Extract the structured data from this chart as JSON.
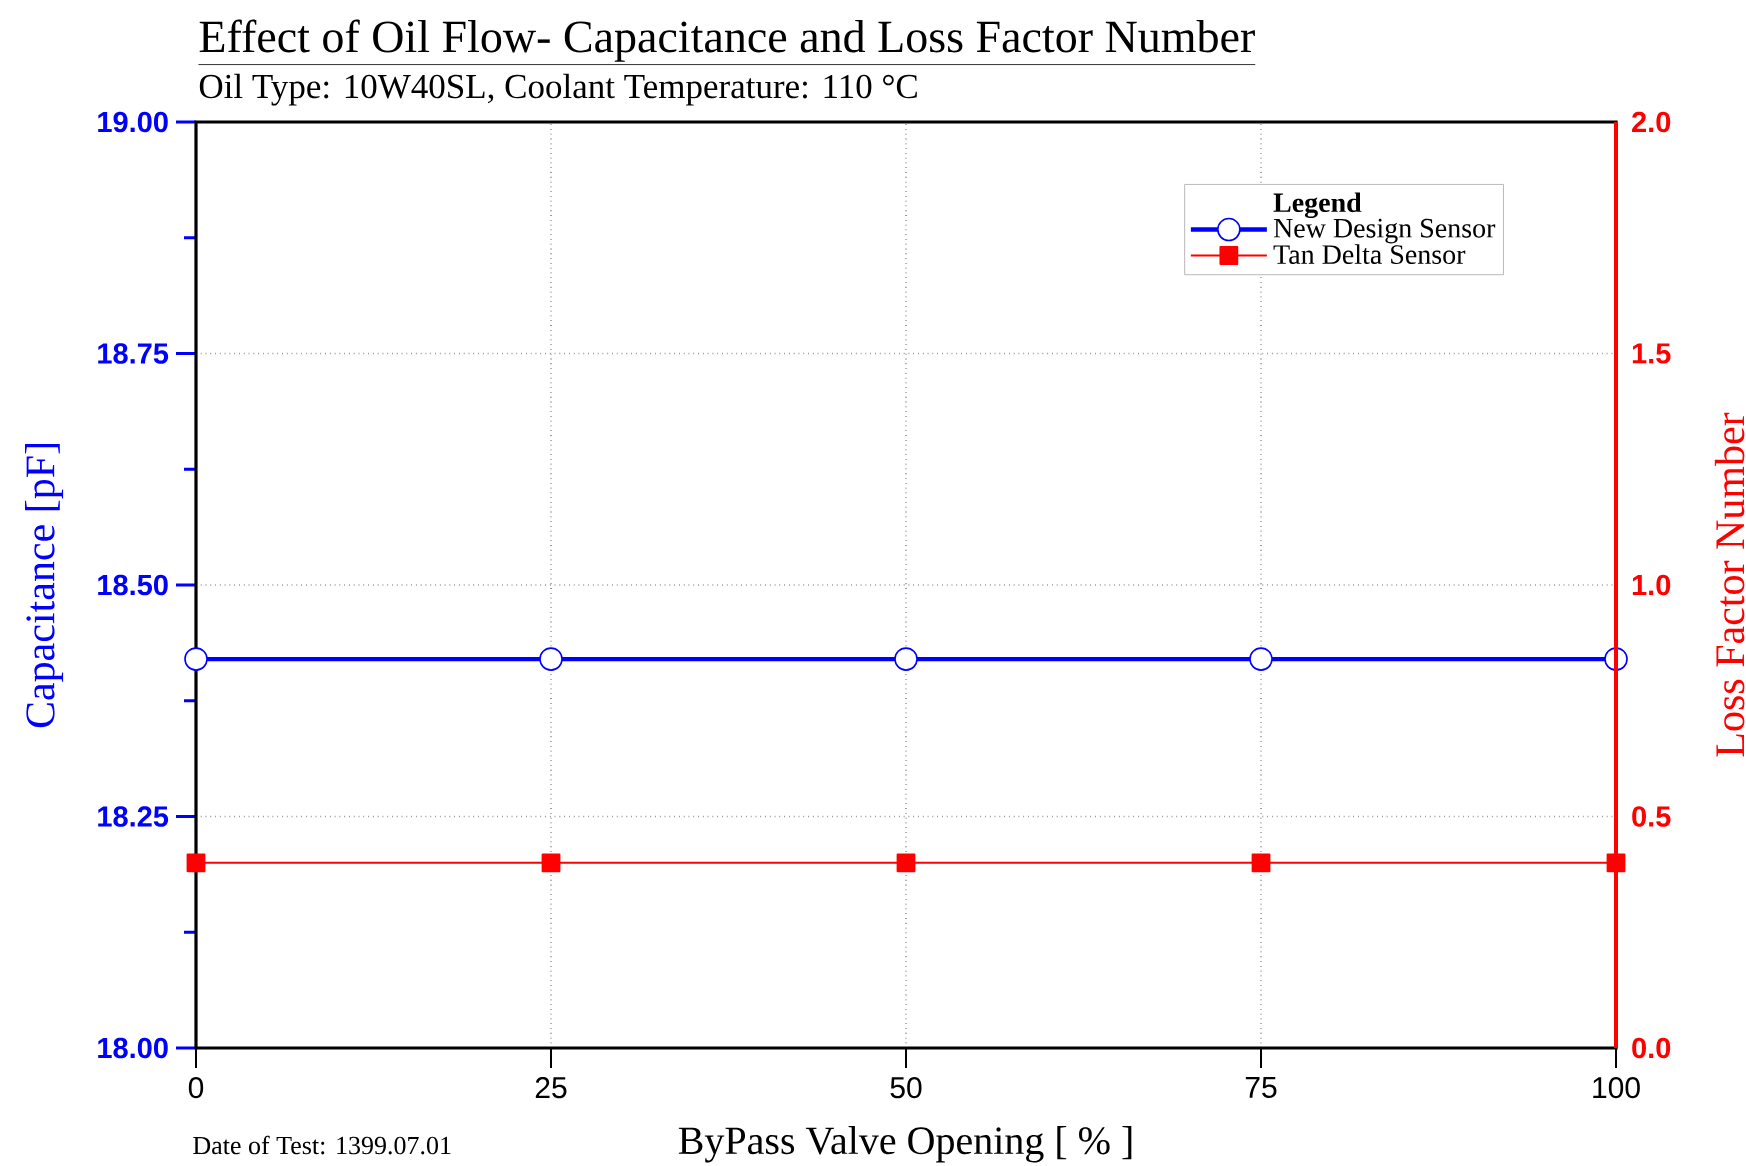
{
  "chart_data": {
    "type": "line",
    "title": "Effect of Oil Flow- Capacitance and Loss Factor Number",
    "subtitle": "Oil Type: 10W40SL, Coolant Temperature: 110 °C",
    "xlabel": "ByPass Valve Opening [ % ]",
    "ylabel": "Capacitance [pF]",
    "y2label": "Loss Factor Number",
    "legend_title": "Legend",
    "annotations": [
      "Date of Test: 1399.07.01"
    ],
    "x": [
      0,
      25,
      50,
      75,
      100
    ],
    "series": [
      {
        "name": "New Design Sensor",
        "color": "#0000ff",
        "marker": "circle",
        "values": [
          18.42,
          18.42,
          18.42,
          18.42,
          18.42
        ]
      },
      {
        "name": "Tan Delta Sensor",
        "color": "#ff0000",
        "marker": "square",
        "axis": "y2",
        "values": [
          0.4,
          0.4,
          0.4,
          0.4,
          0.4
        ]
      }
    ],
    "xlim": [
      0,
      100
    ],
    "xticks": [
      0,
      25,
      50,
      75,
      100
    ],
    "ylim": [
      18,
      19
    ],
    "yticks": [
      {
        "value": 18,
        "label": "18.00"
      },
      {
        "value": 18.125,
        "label": null
      },
      18.25,
      {
        "value": 18.375,
        "label": null
      },
      {
        "value": 18.5,
        "label": "18.50"
      },
      {
        "value": 18.625,
        "label": null
      },
      18.75,
      {
        "value": 18.875,
        "label": null
      },
      {
        "value": 19,
        "label": "19.00"
      }
    ],
    "y2lim": [
      0,
      2
    ],
    "y2ticks": [
      {
        "value": 0,
        "label": "0.0"
      },
      0.5,
      {
        "value": 1,
        "label": "1.0"
      },
      1.5,
      {
        "value": 2,
        "label": "2.0"
      }
    ],
    "grid": true,
    "legend": "top right",
    "line_style": "solid"
  }
}
